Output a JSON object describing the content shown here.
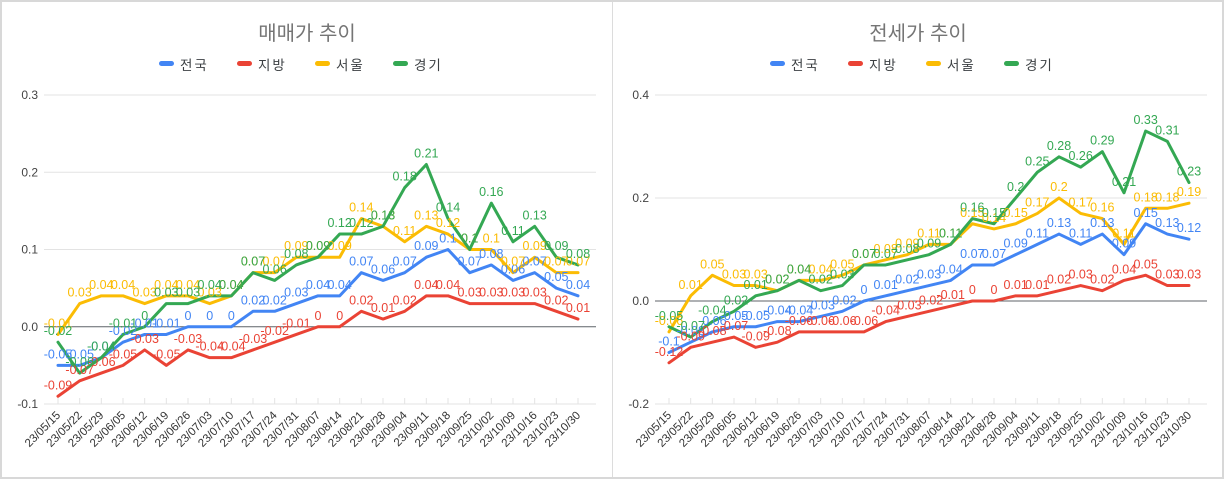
{
  "app": {
    "background": "#ffffff",
    "border_color": "#d8d8d8"
  },
  "chart_data": [
    {
      "type": "line",
      "title": "매매가 추이",
      "title_color": "#757575",
      "legend_position": "top",
      "grid": true,
      "ylim": [
        -0.1,
        0.3
      ],
      "y_ticks": [
        "0.3",
        "0.2",
        "0.1",
        "0.0",
        "-0.1"
      ],
      "categories": [
        "23/05/15",
        "23/05/22",
        "23/05/29",
        "23/06/05",
        "23/06/12",
        "23/06/19",
        "23/06/26",
        "23/07/03",
        "23/07/10",
        "23/07/17",
        "23/07/24",
        "23/07/31",
        "23/08/07",
        "23/08/14",
        "23/08/21",
        "23/08/28",
        "23/09/04",
        "23/09/11",
        "23/09/18",
        "23/09/25",
        "23/10/02",
        "23/10/09",
        "23/10/16",
        "23/10/23",
        "23/10/30"
      ],
      "series": [
        {
          "name": "전국",
          "color": "#4285f4",
          "values": [
            -0.05,
            -0.05,
            -0.04,
            -0.02,
            -0.01,
            -0.01,
            0,
            0,
            0,
            0.02,
            0.02,
            0.03,
            0.04,
            0.04,
            0.07,
            0.06,
            0.07,
            0.09,
            0.1,
            0.07,
            0.08,
            0.06,
            0.07,
            0.05,
            0.04
          ]
        },
        {
          "name": "지방",
          "color": "#ea4335",
          "values": [
            -0.09,
            -0.07,
            -0.06,
            -0.05,
            -0.03,
            -0.05,
            -0.03,
            -0.04,
            -0.04,
            -0.03,
            -0.02,
            -0.01,
            0,
            0,
            0.02,
            0.01,
            0.02,
            0.04,
            0.04,
            0.03,
            0.03,
            0.03,
            0.03,
            0.02,
            0.01
          ]
        },
        {
          "name": "서울",
          "color": "#fbbc04",
          "values": [
            -0.01,
            0.03,
            0.04,
            0.04,
            0.03,
            0.04,
            0.04,
            0.03,
            0.04,
            0.07,
            0.07,
            0.09,
            0.09,
            0.09,
            0.14,
            0.13,
            0.11,
            0.13,
            0.12,
            0.1,
            0.1,
            0.07,
            0.09,
            0.07,
            0.07
          ]
        },
        {
          "name": "경기",
          "color": "#34a853",
          "values": [
            -0.02,
            -0.06,
            -0.04,
            -0.01,
            0,
            0.03,
            0.03,
            0.04,
            0.04,
            0.07,
            0.06,
            0.08,
            0.09,
            0.12,
            0.12,
            0.13,
            0.18,
            0.21,
            0.14,
            0.1,
            0.16,
            0.11,
            0.13,
            0.09,
            0.08
          ]
        }
      ]
    },
    {
      "type": "line",
      "title": "전세가 추이",
      "title_color": "#757575",
      "legend_position": "top",
      "grid": true,
      "ylim": [
        -0.2,
        0.4
      ],
      "y_ticks": [
        "0.4",
        "0.2",
        "0.0",
        "-0.2"
      ],
      "categories": [
        "23/05/15",
        "23/05/22",
        "23/05/29",
        "23/06/05",
        "23/06/12",
        "23/06/19",
        "23/06/26",
        "23/07/03",
        "23/07/10",
        "23/07/17",
        "23/07/24",
        "23/07/31",
        "23/08/07",
        "23/08/14",
        "23/08/21",
        "23/08/28",
        "23/09/04",
        "23/09/11",
        "23/09/18",
        "23/09/25",
        "23/10/02",
        "23/10/09",
        "23/10/16",
        "23/10/23",
        "23/10/30"
      ],
      "series": [
        {
          "name": "전국",
          "color": "#4285f4",
          "values": [
            -0.1,
            -0.08,
            -0.06,
            -0.05,
            -0.05,
            -0.04,
            -0.04,
            -0.03,
            -0.02,
            0,
            0.01,
            0.02,
            0.03,
            0.04,
            0.07,
            0.07,
            0.09,
            0.11,
            0.13,
            0.11,
            0.13,
            0.09,
            0.15,
            0.13,
            0.12
          ]
        },
        {
          "name": "지방",
          "color": "#ea4335",
          "values": [
            -0.12,
            -0.09,
            -0.08,
            -0.07,
            -0.09,
            -0.08,
            -0.06,
            -0.06,
            -0.06,
            -0.06,
            -0.04,
            -0.03,
            -0.02,
            -0.01,
            0,
            0,
            0.01,
            0.01,
            0.02,
            0.03,
            0.02,
            0.04,
            0.05,
            0.03,
            0.03
          ]
        },
        {
          "name": "서울",
          "color": "#fbbc04",
          "values": [
            -0.06,
            0.01,
            0.05,
            0.03,
            0.03,
            0.02,
            0.04,
            0.04,
            0.05,
            0.07,
            0.08,
            0.09,
            0.11,
            0.11,
            0.15,
            0.14,
            0.15,
            0.17,
            0.2,
            0.17,
            0.16,
            0.11,
            0.18,
            0.18,
            0.19
          ]
        },
        {
          "name": "경기",
          "color": "#34a853",
          "values": [
            -0.05,
            -0.07,
            -0.04,
            -0.02,
            0.01,
            0.02,
            0.04,
            0.02,
            0.03,
            0.07,
            0.07,
            0.08,
            0.09,
            0.11,
            0.16,
            0.15,
            0.2,
            0.25,
            0.28,
            0.26,
            0.29,
            0.21,
            0.33,
            0.31,
            0.23
          ]
        }
      ]
    }
  ]
}
